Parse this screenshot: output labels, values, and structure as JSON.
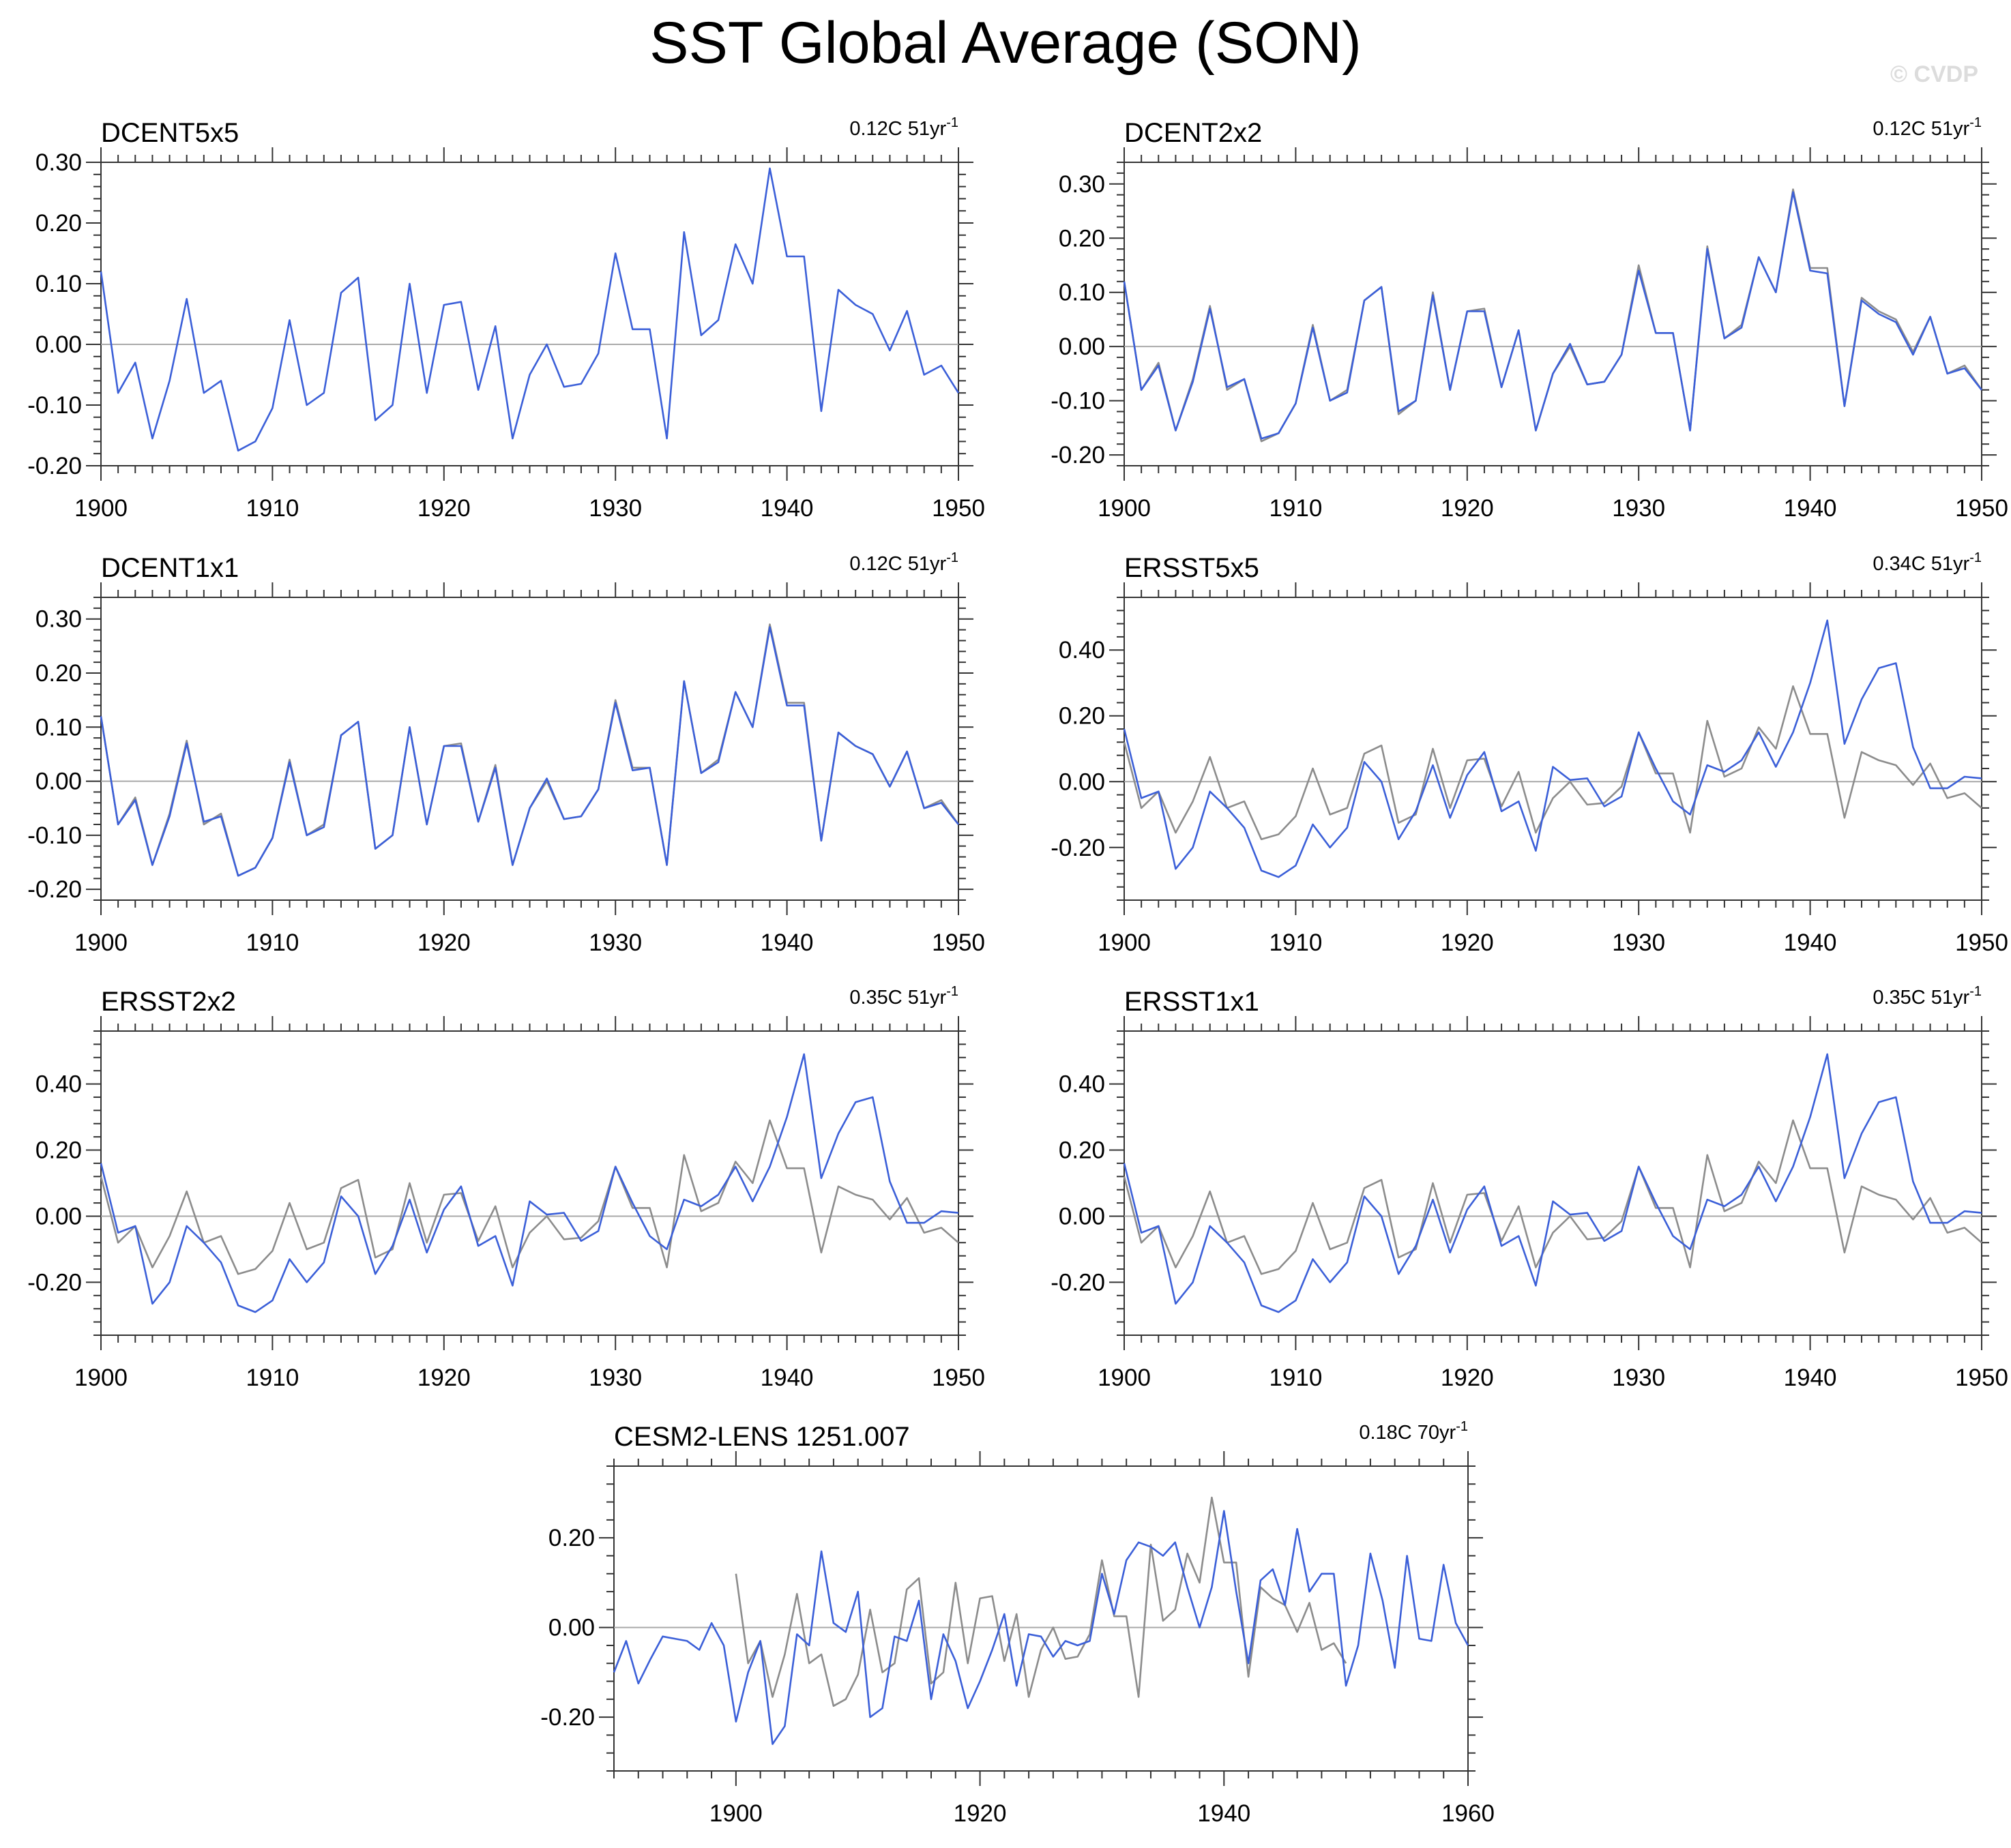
{
  "page": {
    "title": "SST Global Average (SON)",
    "watermark": "© CVDP",
    "colors": {
      "model": "#3b5fd8",
      "reference": "#8c8c8c",
      "axis": "#000000",
      "zero_line": "#aaaaaa"
    }
  },
  "chart_data": [
    {
      "type": "line",
      "name": "DCENT5x5",
      "trend": "0.12C 51yr",
      "trend_sup": "-1",
      "xlim": [
        1900,
        1950
      ],
      "ylim": [
        -0.2,
        0.3
      ],
      "xticks": [
        1900,
        1910,
        1920,
        1930,
        1940,
        1950
      ],
      "yticks": [
        0.3,
        0.2,
        0.1,
        0.0,
        -0.1,
        -0.2
      ],
      "ytick_labels": [
        "0.30",
        "0.20",
        "0.10",
        "0.00",
        "-0.10",
        "-0.20"
      ],
      "series": [
        {
          "name": "DCENT5x5",
          "role": "model",
          "x_start": 1900,
          "values": [
            0.12,
            -0.08,
            -0.03,
            -0.155,
            -0.06,
            0.075,
            -0.08,
            -0.06,
            -0.175,
            -0.16,
            -0.105,
            0.04,
            -0.1,
            -0.08,
            0.085,
            0.11,
            -0.125,
            -0.1,
            0.1,
            -0.08,
            0.065,
            0.07,
            -0.075,
            0.03,
            -0.155,
            -0.05,
            0.0,
            -0.07,
            -0.065,
            -0.015,
            0.15,
            0.025,
            0.025,
            -0.155,
            0.185,
            0.015,
            0.04,
            0.165,
            0.1,
            0.29,
            0.145,
            0.145,
            -0.11,
            0.09,
            0.065,
            0.05,
            -0.01,
            0.055,
            -0.05,
            -0.035,
            -0.08
          ]
        }
      ]
    },
    {
      "type": "line",
      "name": "DCENT2x2",
      "trend": "0.12C 51yr",
      "trend_sup": "-1",
      "xlim": [
        1900,
        1950
      ],
      "ylim": [
        -0.22,
        0.34
      ],
      "xticks": [
        1900,
        1910,
        1920,
        1930,
        1940,
        1950
      ],
      "yticks": [
        0.3,
        0.2,
        0.1,
        0.0,
        -0.1,
        -0.2
      ],
      "ytick_labels": [
        "0.30",
        "0.20",
        "0.10",
        "0.00",
        "-0.10",
        "-0.20"
      ],
      "series": [
        {
          "name": "DCENT5x5",
          "role": "reference",
          "x_start": 1900,
          "values": [
            0.12,
            -0.08,
            -0.03,
            -0.155,
            -0.06,
            0.075,
            -0.08,
            -0.06,
            -0.175,
            -0.16,
            -0.105,
            0.04,
            -0.1,
            -0.08,
            0.085,
            0.11,
            -0.125,
            -0.1,
            0.1,
            -0.08,
            0.065,
            0.07,
            -0.075,
            0.03,
            -0.155,
            -0.05,
            0.0,
            -0.07,
            -0.065,
            -0.015,
            0.15,
            0.025,
            0.025,
            -0.155,
            0.185,
            0.015,
            0.04,
            0.165,
            0.1,
            0.29,
            0.145,
            0.145,
            -0.11,
            0.09,
            0.065,
            0.05,
            -0.01,
            0.055,
            -0.05,
            -0.035,
            -0.08
          ]
        },
        {
          "name": "DCENT2x2",
          "role": "model",
          "x_start": 1900,
          "values": [
            0.12,
            -0.08,
            -0.035,
            -0.155,
            -0.065,
            0.07,
            -0.075,
            -0.06,
            -0.17,
            -0.16,
            -0.105,
            0.035,
            -0.1,
            -0.085,
            0.085,
            0.11,
            -0.12,
            -0.1,
            0.095,
            -0.08,
            0.065,
            0.065,
            -0.075,
            0.03,
            -0.155,
            -0.05,
            0.005,
            -0.07,
            -0.065,
            -0.015,
            0.14,
            0.025,
            0.025,
            -0.155,
            0.18,
            0.015,
            0.035,
            0.165,
            0.1,
            0.285,
            0.14,
            0.135,
            -0.11,
            0.085,
            0.06,
            0.045,
            -0.015,
            0.055,
            -0.05,
            -0.04,
            -0.08
          ]
        }
      ]
    },
    {
      "type": "line",
      "name": "DCENT1x1",
      "trend": "0.12C 51yr",
      "trend_sup": "-1",
      "xlim": [
        1900,
        1950
      ],
      "ylim": [
        -0.22,
        0.34
      ],
      "xticks": [
        1900,
        1910,
        1920,
        1930,
        1940,
        1950
      ],
      "yticks": [
        0.3,
        0.2,
        0.1,
        0.0,
        -0.1,
        -0.2
      ],
      "ytick_labels": [
        "0.30",
        "0.20",
        "0.10",
        "0.00",
        "-0.10",
        "-0.20"
      ],
      "series": [
        {
          "name": "DCENT5x5",
          "role": "reference",
          "x_start": 1900,
          "values": [
            0.12,
            -0.08,
            -0.03,
            -0.155,
            -0.06,
            0.075,
            -0.08,
            -0.06,
            -0.175,
            -0.16,
            -0.105,
            0.04,
            -0.1,
            -0.08,
            0.085,
            0.11,
            -0.125,
            -0.1,
            0.1,
            -0.08,
            0.065,
            0.07,
            -0.075,
            0.03,
            -0.155,
            -0.05,
            0.0,
            -0.07,
            -0.065,
            -0.015,
            0.15,
            0.025,
            0.025,
            -0.155,
            0.185,
            0.015,
            0.04,
            0.165,
            0.1,
            0.29,
            0.145,
            0.145,
            -0.11,
            0.09,
            0.065,
            0.05,
            -0.01,
            0.055,
            -0.05,
            -0.035,
            -0.08
          ]
        },
        {
          "name": "DCENT1x1",
          "role": "model",
          "x_start": 1900,
          "values": [
            0.12,
            -0.08,
            -0.035,
            -0.155,
            -0.065,
            0.07,
            -0.075,
            -0.065,
            -0.175,
            -0.16,
            -0.105,
            0.035,
            -0.1,
            -0.085,
            0.085,
            0.11,
            -0.125,
            -0.1,
            0.1,
            -0.08,
            0.065,
            0.065,
            -0.075,
            0.025,
            -0.155,
            -0.05,
            0.005,
            -0.07,
            -0.065,
            -0.015,
            0.145,
            0.02,
            0.025,
            -0.155,
            0.185,
            0.015,
            0.035,
            0.165,
            0.1,
            0.285,
            0.14,
            0.14,
            -0.11,
            0.09,
            0.065,
            0.05,
            -0.01,
            0.055,
            -0.05,
            -0.04,
            -0.08
          ]
        }
      ]
    },
    {
      "type": "line",
      "name": "ERSST5x5",
      "trend": "0.34C 51yr",
      "trend_sup": "-1",
      "xlim": [
        1900,
        1950
      ],
      "ylim": [
        -0.36,
        0.56
      ],
      "xticks": [
        1900,
        1910,
        1920,
        1930,
        1940,
        1950
      ],
      "yticks": [
        0.4,
        0.2,
        0.0,
        -0.2
      ],
      "ytick_labels": [
        "0.40",
        "0.20",
        "0.00",
        "-0.20"
      ],
      "series": [
        {
          "name": "DCENT5x5",
          "role": "reference",
          "x_start": 1900,
          "values": [
            0.12,
            -0.08,
            -0.03,
            -0.155,
            -0.06,
            0.075,
            -0.08,
            -0.06,
            -0.175,
            -0.16,
            -0.105,
            0.04,
            -0.1,
            -0.08,
            0.085,
            0.11,
            -0.125,
            -0.1,
            0.1,
            -0.08,
            0.065,
            0.07,
            -0.075,
            0.03,
            -0.155,
            -0.05,
            0.0,
            -0.07,
            -0.065,
            -0.015,
            0.15,
            0.025,
            0.025,
            -0.155,
            0.185,
            0.015,
            0.04,
            0.165,
            0.1,
            0.29,
            0.145,
            0.145,
            -0.11,
            0.09,
            0.065,
            0.05,
            -0.01,
            0.055,
            -0.05,
            -0.035,
            -0.08
          ]
        },
        {
          "name": "ERSST5x5",
          "role": "model",
          "x_start": 1900,
          "values": [
            0.16,
            -0.05,
            -0.03,
            -0.265,
            -0.2,
            -0.03,
            -0.08,
            -0.14,
            -0.27,
            -0.29,
            -0.255,
            -0.13,
            -0.2,
            -0.14,
            0.06,
            0.0,
            -0.175,
            -0.09,
            0.05,
            -0.11,
            0.02,
            0.09,
            -0.09,
            -0.06,
            -0.21,
            0.045,
            0.005,
            0.01,
            -0.075,
            -0.045,
            0.15,
            0.04,
            -0.06,
            -0.1,
            0.05,
            0.03,
            0.065,
            0.15,
            0.045,
            0.15,
            0.3,
            0.49,
            0.115,
            0.25,
            0.345,
            0.36,
            0.105,
            -0.02,
            -0.02,
            0.015,
            0.01
          ]
        }
      ]
    },
    {
      "type": "line",
      "name": "ERSST2x2",
      "trend": "0.35C 51yr",
      "trend_sup": "-1",
      "xlim": [
        1900,
        1950
      ],
      "ylim": [
        -0.36,
        0.56
      ],
      "xticks": [
        1900,
        1910,
        1920,
        1930,
        1940,
        1950
      ],
      "yticks": [
        0.4,
        0.2,
        0.0,
        -0.2
      ],
      "ytick_labels": [
        "0.40",
        "0.20",
        "0.00",
        "-0.20"
      ],
      "series": [
        {
          "name": "DCENT5x5",
          "role": "reference",
          "x_start": 1900,
          "values": [
            0.12,
            -0.08,
            -0.03,
            -0.155,
            -0.06,
            0.075,
            -0.08,
            -0.06,
            -0.175,
            -0.16,
            -0.105,
            0.04,
            -0.1,
            -0.08,
            0.085,
            0.11,
            -0.125,
            -0.1,
            0.1,
            -0.08,
            0.065,
            0.07,
            -0.075,
            0.03,
            -0.155,
            -0.05,
            0.0,
            -0.07,
            -0.065,
            -0.015,
            0.15,
            0.025,
            0.025,
            -0.155,
            0.185,
            0.015,
            0.04,
            0.165,
            0.1,
            0.29,
            0.145,
            0.145,
            -0.11,
            0.09,
            0.065,
            0.05,
            -0.01,
            0.055,
            -0.05,
            -0.035,
            -0.08
          ]
        },
        {
          "name": "ERSST2x2",
          "role": "model",
          "x_start": 1900,
          "values": [
            0.16,
            -0.05,
            -0.03,
            -0.265,
            -0.2,
            -0.03,
            -0.08,
            -0.14,
            -0.27,
            -0.29,
            -0.255,
            -0.13,
            -0.2,
            -0.14,
            0.06,
            0.0,
            -0.175,
            -0.09,
            0.05,
            -0.11,
            0.02,
            0.09,
            -0.09,
            -0.06,
            -0.21,
            0.045,
            0.005,
            0.01,
            -0.075,
            -0.045,
            0.15,
            0.04,
            -0.06,
            -0.1,
            0.05,
            0.03,
            0.065,
            0.15,
            0.045,
            0.15,
            0.3,
            0.49,
            0.115,
            0.25,
            0.345,
            0.36,
            0.105,
            -0.02,
            -0.02,
            0.015,
            0.01
          ]
        }
      ]
    },
    {
      "type": "line",
      "name": "ERSST1x1",
      "trend": "0.35C 51yr",
      "trend_sup": "-1",
      "xlim": [
        1900,
        1950
      ],
      "ylim": [
        -0.36,
        0.56
      ],
      "xticks": [
        1900,
        1910,
        1920,
        1930,
        1940,
        1950
      ],
      "yticks": [
        0.4,
        0.2,
        0.0,
        -0.2
      ],
      "ytick_labels": [
        "0.40",
        "0.20",
        "0.00",
        "-0.20"
      ],
      "series": [
        {
          "name": "DCENT5x5",
          "role": "reference",
          "x_start": 1900,
          "values": [
            0.12,
            -0.08,
            -0.03,
            -0.155,
            -0.06,
            0.075,
            -0.08,
            -0.06,
            -0.175,
            -0.16,
            -0.105,
            0.04,
            -0.1,
            -0.08,
            0.085,
            0.11,
            -0.125,
            -0.1,
            0.1,
            -0.08,
            0.065,
            0.07,
            -0.075,
            0.03,
            -0.155,
            -0.05,
            0.0,
            -0.07,
            -0.065,
            -0.015,
            0.15,
            0.025,
            0.025,
            -0.155,
            0.185,
            0.015,
            0.04,
            0.165,
            0.1,
            0.29,
            0.145,
            0.145,
            -0.11,
            0.09,
            0.065,
            0.05,
            -0.01,
            0.055,
            -0.05,
            -0.035,
            -0.08
          ]
        },
        {
          "name": "ERSST1x1",
          "role": "model",
          "x_start": 1900,
          "values": [
            0.16,
            -0.05,
            -0.03,
            -0.265,
            -0.2,
            -0.03,
            -0.08,
            -0.14,
            -0.27,
            -0.29,
            -0.255,
            -0.13,
            -0.2,
            -0.14,
            0.06,
            0.0,
            -0.175,
            -0.09,
            0.05,
            -0.11,
            0.02,
            0.09,
            -0.09,
            -0.06,
            -0.21,
            0.045,
            0.005,
            0.01,
            -0.075,
            -0.045,
            0.15,
            0.04,
            -0.06,
            -0.1,
            0.05,
            0.03,
            0.065,
            0.15,
            0.045,
            0.15,
            0.3,
            0.49,
            0.115,
            0.25,
            0.345,
            0.36,
            0.105,
            -0.02,
            -0.02,
            0.015,
            0.01
          ]
        }
      ]
    },
    {
      "type": "line",
      "name": "CESM2-LENS 1251.007",
      "trend": "0.18C 70yr",
      "trend_sup": "-1",
      "xlim": [
        1890,
        1960
      ],
      "ylim": [
        -0.32,
        0.36
      ],
      "xticks": [
        1900,
        1920,
        1940,
        1960
      ],
      "yticks": [
        0.2,
        0.0,
        -0.2
      ],
      "ytick_labels": [
        "0.20",
        "0.00",
        "-0.20"
      ],
      "series": [
        {
          "name": "DCENT5x5",
          "role": "reference",
          "x_start": 1900,
          "values": [
            0.12,
            -0.08,
            -0.03,
            -0.155,
            -0.06,
            0.075,
            -0.08,
            -0.06,
            -0.175,
            -0.16,
            -0.105,
            0.04,
            -0.1,
            -0.08,
            0.085,
            0.11,
            -0.125,
            -0.1,
            0.1,
            -0.08,
            0.065,
            0.07,
            -0.075,
            0.03,
            -0.155,
            -0.05,
            0.0,
            -0.07,
            -0.065,
            -0.015,
            0.15,
            0.025,
            0.025,
            -0.155,
            0.185,
            0.015,
            0.04,
            0.165,
            0.1,
            0.29,
            0.145,
            0.145,
            -0.11,
            0.09,
            0.065,
            0.05,
            -0.01,
            0.055,
            -0.05,
            -0.035,
            -0.08
          ]
        },
        {
          "name": "CESM2-LENS 1251.007",
          "role": "model",
          "x_start": 1890,
          "values": [
            -0.1,
            -0.03,
            -0.125,
            -0.07,
            -0.02,
            -0.025,
            -0.03,
            -0.05,
            0.01,
            -0.04,
            -0.21,
            -0.1,
            -0.03,
            -0.26,
            -0.22,
            -0.015,
            -0.04,
            0.17,
            0.01,
            -0.01,
            0.08,
            -0.2,
            -0.18,
            -0.02,
            -0.03,
            0.06,
            -0.16,
            -0.015,
            -0.075,
            -0.18,
            -0.12,
            -0.05,
            0.03,
            -0.13,
            -0.015,
            -0.02,
            -0.065,
            -0.03,
            -0.04,
            -0.03,
            0.12,
            0.03,
            0.15,
            0.19,
            0.18,
            0.16,
            0.19,
            0.09,
            0.0,
            0.09,
            0.26,
            0.08,
            -0.08,
            0.105,
            0.13,
            0.05,
            0.22,
            0.08,
            0.12,
            0.12,
            -0.13,
            -0.04,
            0.165,
            0.06,
            -0.09,
            0.16,
            -0.025,
            -0.03,
            0.14,
            0.01,
            -0.04
          ]
        }
      ]
    }
  ]
}
